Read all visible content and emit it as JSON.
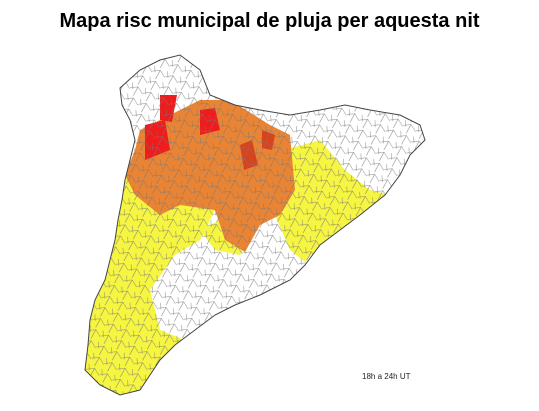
{
  "map": {
    "title": "Mapa risc municipal de pluja per aquesta nit",
    "time_label": "18h a 24h UT"
  }
}
